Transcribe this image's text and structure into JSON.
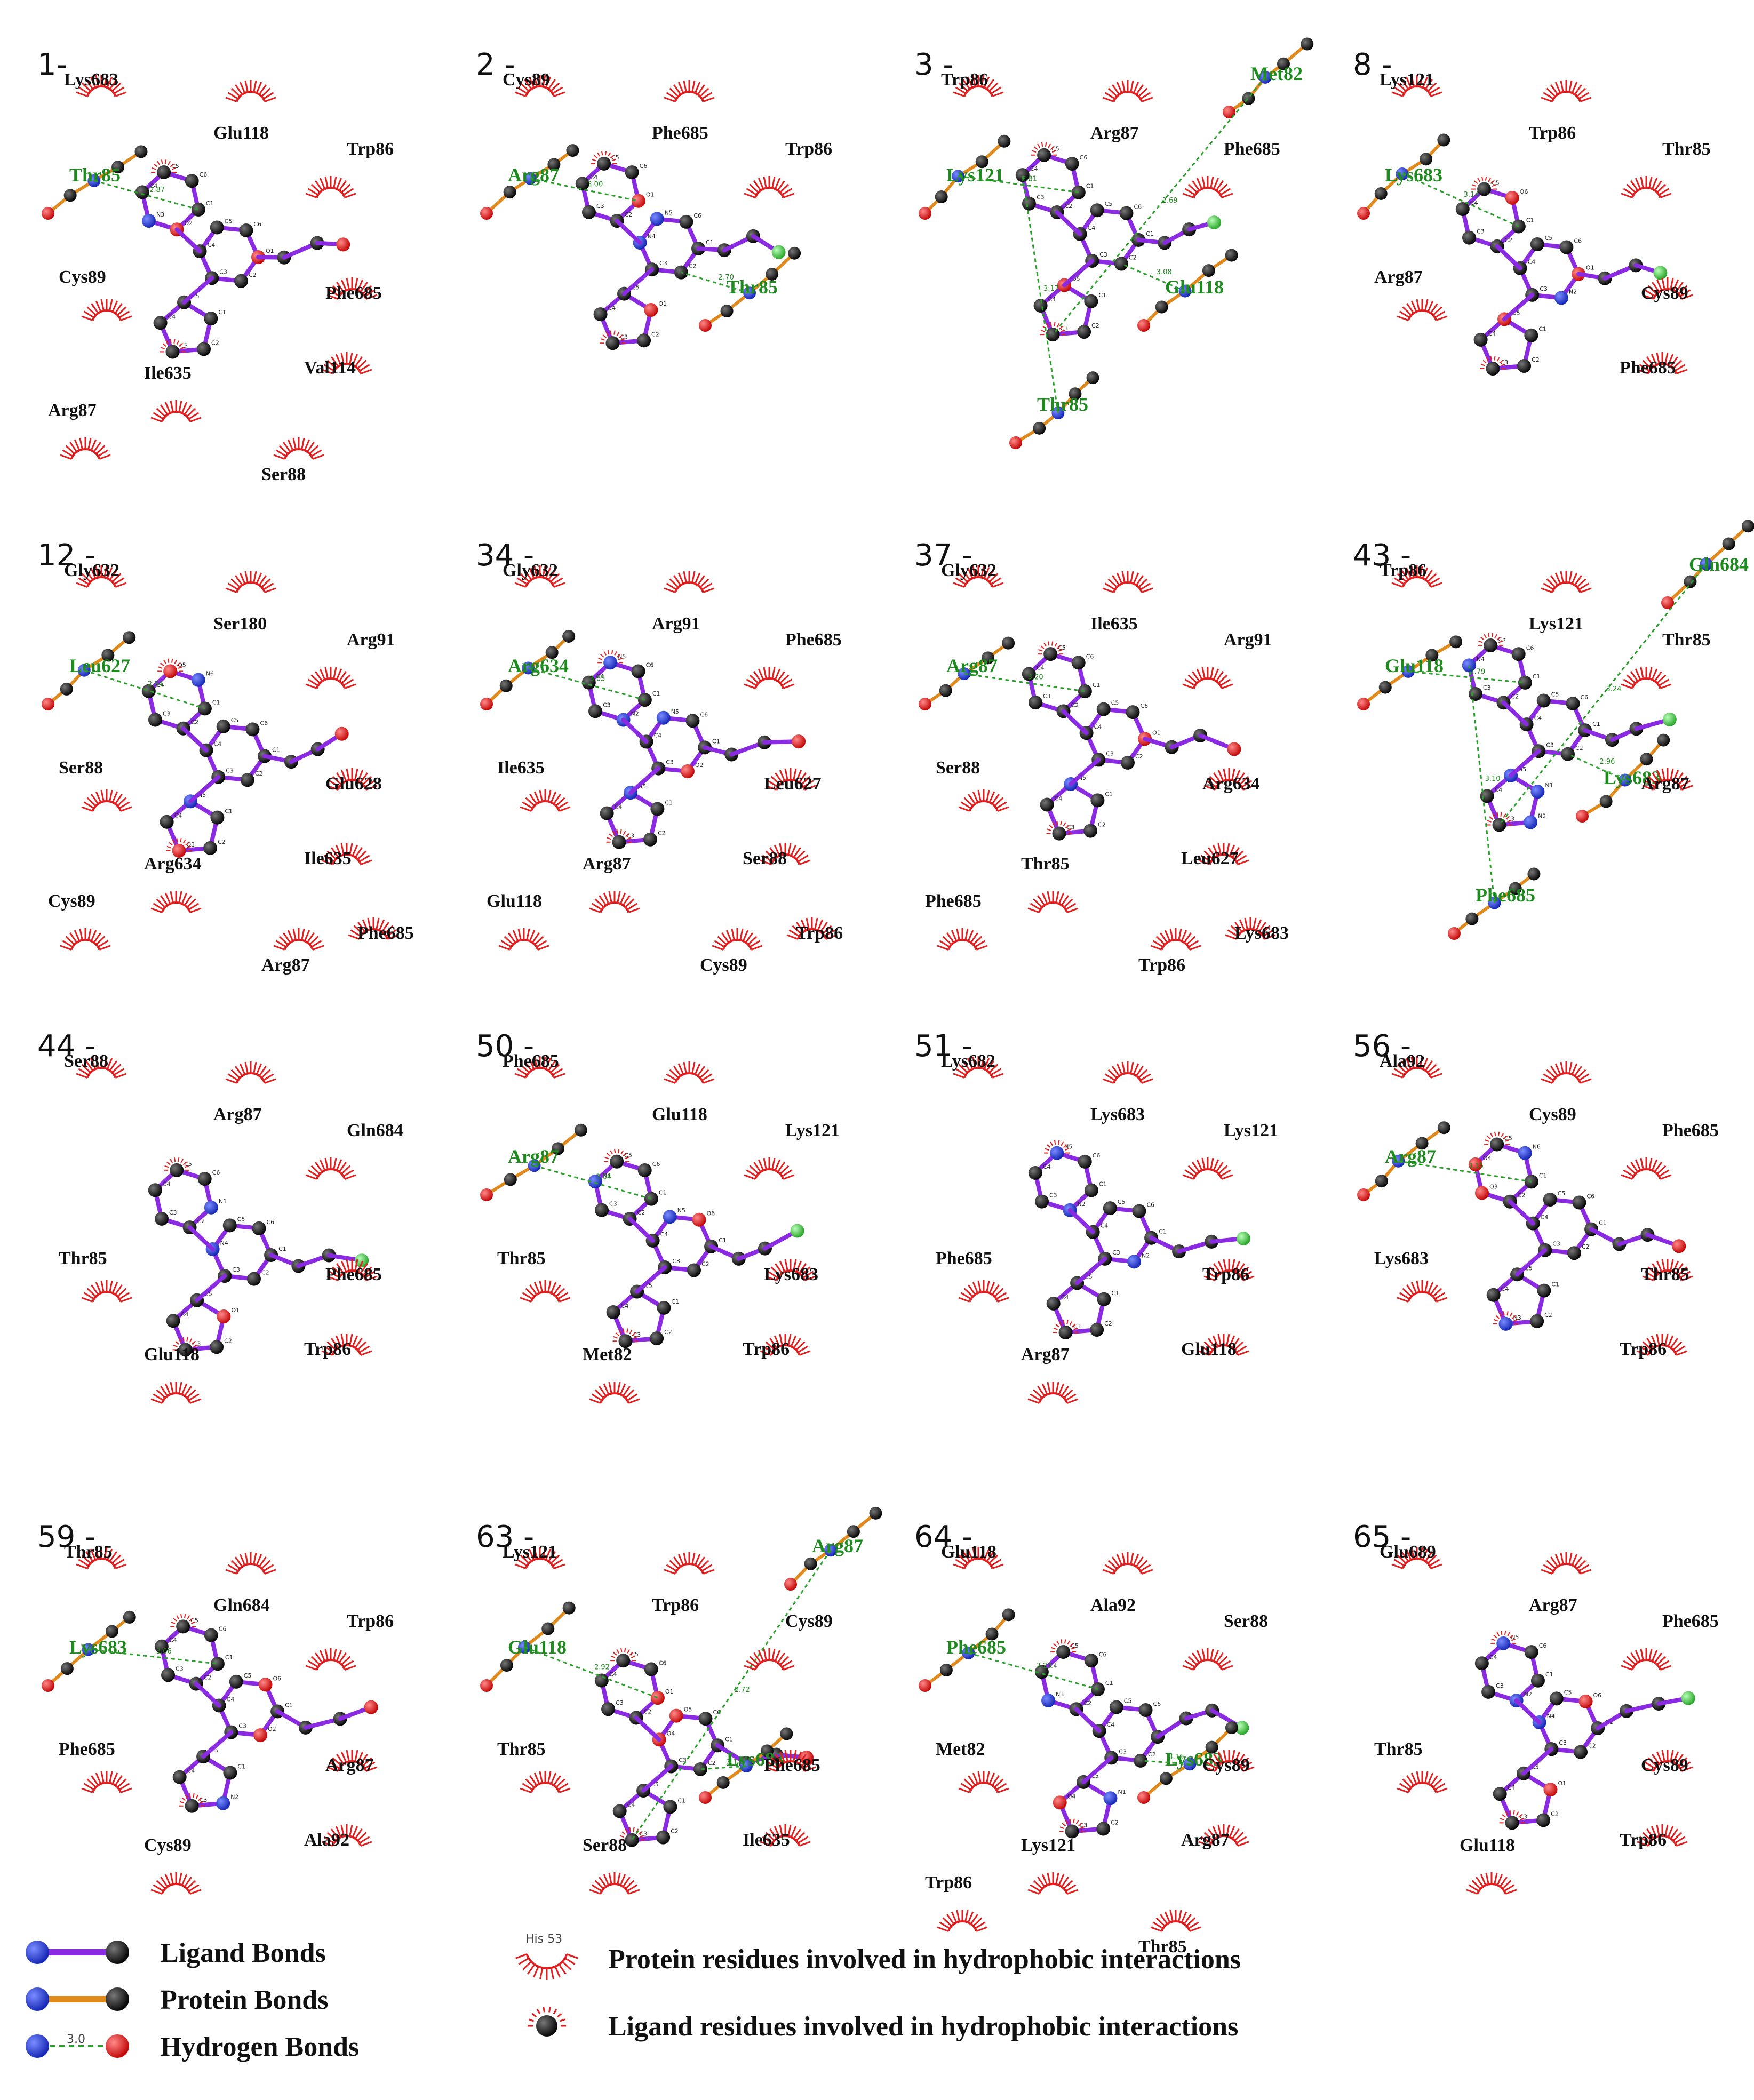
{
  "colors": {
    "ligand_bond": "#8a2be2",
    "protein_bond": "#e08a1e",
    "hydrogen_bond": "#2aa02a",
    "carbon": "#111111",
    "nitrogen": "#1f3fd9",
    "oxygen": "#e01010",
    "sulfur": "#f0e020",
    "chlorine": "#33cc33",
    "hydrophobic_arc": "#e02020",
    "hb_label": "#1f8a1f"
  },
  "panels": [
    {
      "id": "1-",
      "residues": [
        "Lys683",
        "Glu118",
        "Trp86",
        "Phe685",
        "Cys89",
        "Val114",
        "Ile635",
        "Ser88",
        "Arg87"
      ],
      "hbond_residues": [
        "Thr85"
      ],
      "distances": [
        "2.87"
      ]
    },
    {
      "id": "2 -",
      "residues": [
        "Cys89",
        "Phe685",
        "Trp86"
      ],
      "hbond_residues": [
        "Arg87",
        "Thr85"
      ],
      "distances": [
        "3.00",
        "2.70",
        "2.88"
      ]
    },
    {
      "id": "3 -",
      "residues": [
        "Trp86",
        "Arg87",
        "Phe685"
      ],
      "hbond_residues": [
        "Lys121",
        "Glu118",
        "Met82",
        "Thr85"
      ],
      "distances": [
        "2.81",
        "3.08",
        "2.69",
        "3.17"
      ]
    },
    {
      "id": "8 -",
      "residues": [
        "Lys121",
        "Trp86",
        "Thr85",
        "Cys89",
        "Arg87",
        "Phe685"
      ],
      "hbond_residues": [
        "Lys683"
      ],
      "distances": [
        "3.14"
      ]
    },
    {
      "id": "12 -",
      "residues": [
        "Gly632",
        "Ser180",
        "Arg91",
        "Glu628",
        "Ser88",
        "Ile635",
        "Arg634",
        "Arg87",
        "Cys89",
        "Phe685"
      ],
      "hbond_residues": [
        "Leu627"
      ],
      "distances": [
        "2.94"
      ]
    },
    {
      "id": "34 -",
      "residues": [
        "Gly632",
        "Arg91",
        "Phe685",
        "Leu627",
        "Ile635",
        "Ser88",
        "Arg87",
        "Cys89",
        "Glu118",
        "Trp86"
      ],
      "hbond_residues": [
        "Arg634"
      ],
      "distances": [
        "3.05"
      ]
    },
    {
      "id": "37 -",
      "residues": [
        "Gly632",
        "Ile635",
        "Arg91",
        "Arg634",
        "Ser88",
        "Leu627",
        "Thr85",
        "Trp86",
        "Phe685",
        "Lys683"
      ],
      "hbond_residues": [
        "Arg87"
      ],
      "distances": [
        "3.20"
      ]
    },
    {
      "id": "43 -",
      "residues": [
        "Trp86",
        "Lys121",
        "Thr85",
        "Arg87"
      ],
      "hbond_residues": [
        "Glu118",
        "Lys683",
        "Gln684",
        "Phe685"
      ],
      "distances": [
        "2.79",
        "2.96",
        "3.24",
        "3.10"
      ]
    },
    {
      "id": "44 -",
      "residues": [
        "Ser88",
        "Arg87",
        "Gln684",
        "Phe685",
        "Thr85",
        "Trp86",
        "Glu118"
      ],
      "hbond_residues": [],
      "distances": []
    },
    {
      "id": "50 -",
      "residues": [
        "Phe685",
        "Glu118",
        "Lys121",
        "Lys683",
        "Thr85",
        "Trp86",
        "Met82"
      ],
      "hbond_residues": [
        "Arg87"
      ],
      "distances": [
        "3.04"
      ]
    },
    {
      "id": "51 -",
      "residues": [
        "Lys682",
        "Lys683",
        "Lys121",
        "Trp86",
        "Phe685",
        "Glu118",
        "Arg87"
      ],
      "hbond_residues": [],
      "distances": []
    },
    {
      "id": "56 -",
      "residues": [
        "Ala92",
        "Cys89",
        "Phe685",
        "Thr85",
        "Lys683",
        "Trp86"
      ],
      "hbond_residues": [
        "Arg87"
      ],
      "distances": [
        "3.15"
      ]
    },
    {
      "id": "59 -",
      "residues": [
        "Thr85",
        "Gln684",
        "Trp86",
        "Arg87",
        "Phe685",
        "Ala92",
        "Cys89"
      ],
      "hbond_residues": [
        "Lys683"
      ],
      "distances": [
        "3.06"
      ]
    },
    {
      "id": "63 -",
      "residues": [
        "Lys121",
        "Trp86",
        "Cys89",
        "Phe685",
        "Thr85",
        "Ile635",
        "Ser88"
      ],
      "hbond_residues": [
        "Glu118",
        "Lys683",
        "Arg87"
      ],
      "distances": [
        "2.92",
        "3.11",
        "2.72"
      ]
    },
    {
      "id": "64 -",
      "residues": [
        "Glu118",
        "Ala92",
        "Ser88",
        "Cys89",
        "Met82",
        "Arg87",
        "Lys121",
        "Thr85",
        "Trp86"
      ],
      "hbond_residues": [
        "Phe685",
        "Lys683"
      ],
      "distances": [
        "3.23",
        "3.16"
      ]
    },
    {
      "id": "65 -",
      "residues": [
        "Glu689",
        "Arg87",
        "Phe685",
        "Cys89",
        "Thr85",
        "Trp86",
        "Glu118"
      ],
      "hbond_residues": [],
      "distances": []
    }
  ],
  "legend": {
    "ligand_bonds": "Ligand Bonds",
    "protein_bonds": "Protein Bonds",
    "hydrogen_bonds": "Hydrogen Bonds",
    "hydrogen_sample": "3.0",
    "residue_sample": "His 53",
    "protein_residues": "Protein residues involved in hydrophobic interactions",
    "ligand_residues": "Ligand residues involved in hydrophobic interactions"
  }
}
